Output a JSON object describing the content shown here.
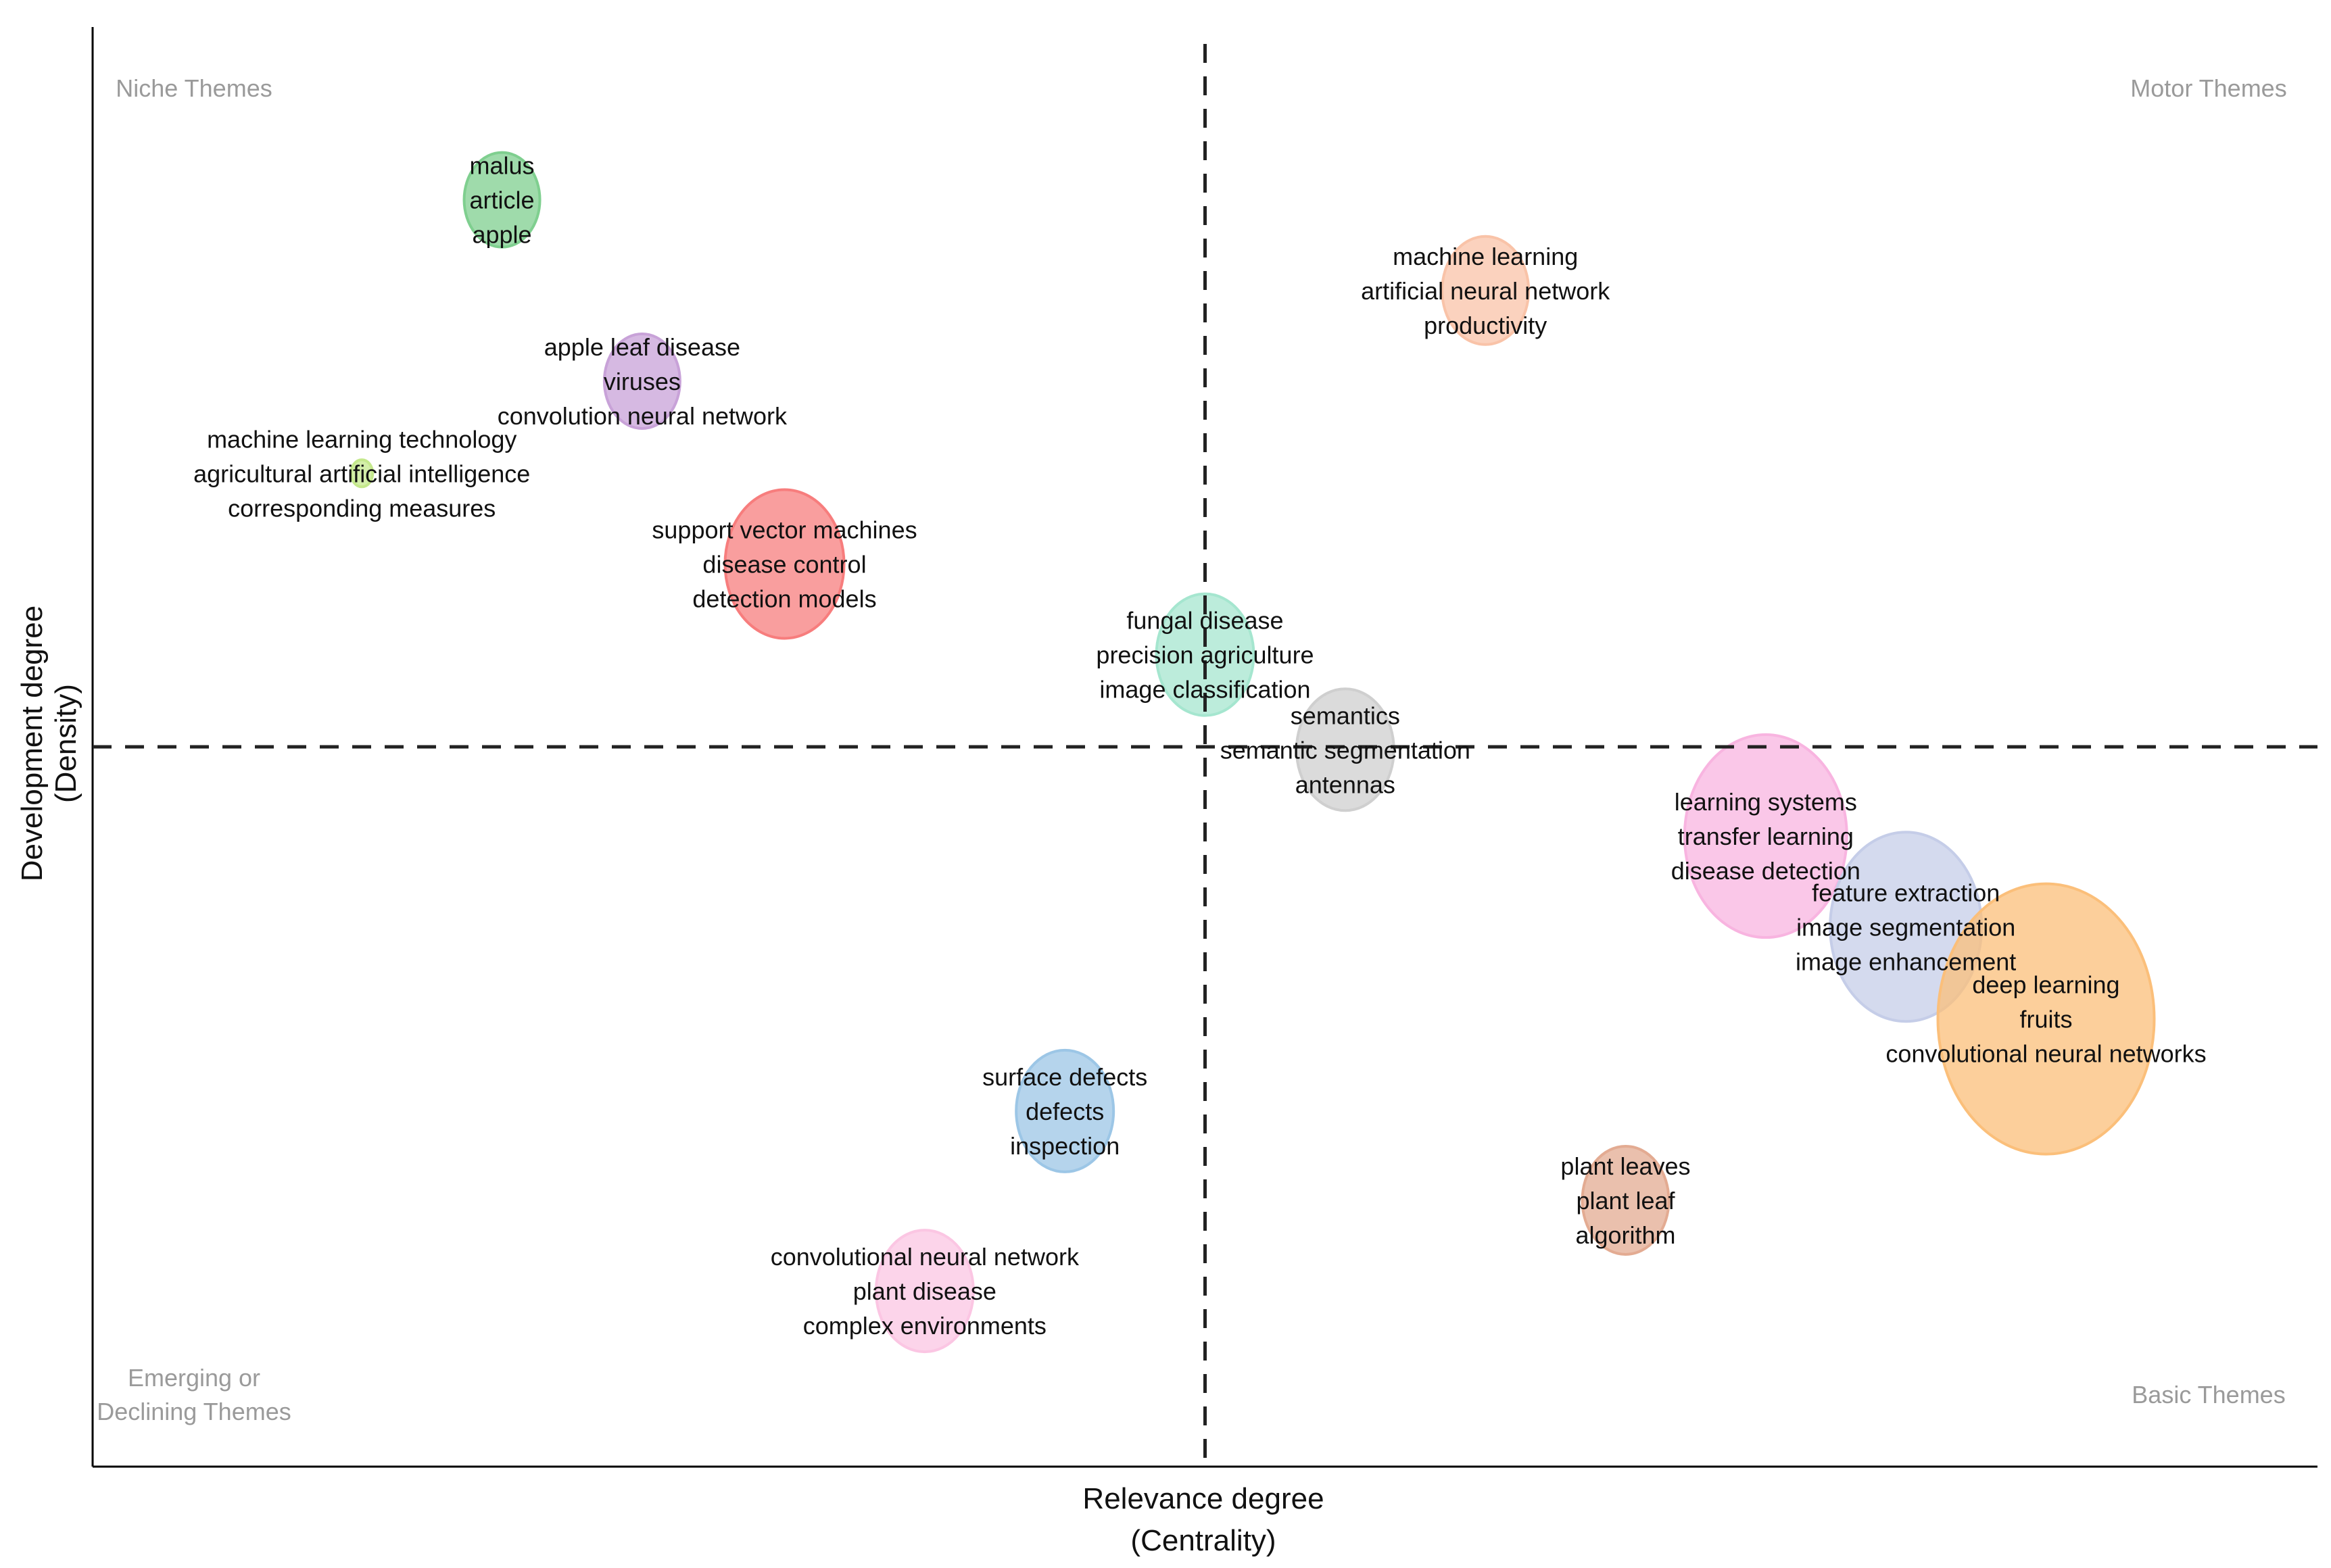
{
  "chart_data": {
    "type": "scatter",
    "title": "",
    "xlabel": [
      "Relevance degree",
      "(Centrality)"
    ],
    "ylabel": [
      "Development degree",
      "(Density)"
    ],
    "xlim": [
      0,
      1000
    ],
    "ylim": [
      0,
      1000
    ],
    "quadrant_lines": {
      "x": 500,
      "y": 500
    },
    "quadrant_labels": {
      "top_left": [
        "Niche Themes"
      ],
      "top_right": [
        "Motor Themes"
      ],
      "bottom_left": [
        "Emerging or",
        "Declining Themes"
      ],
      "bottom_right": [
        "Basic Themes"
      ]
    },
    "clusters": [
      {
        "id": "malus",
        "labels": [
          "malus",
          "article",
          "apple"
        ],
        "x": 184,
        "y": 880,
        "size": 3.5,
        "color": "#7fcf8f"
      },
      {
        "id": "apple-leaf-disease",
        "labels": [
          "apple leaf disease",
          "viruses",
          "convolution neural network"
        ],
        "x": 247,
        "y": 754,
        "size": 3.5,
        "color": "#c8a2d8"
      },
      {
        "id": "machine-learning-technology",
        "labels": [
          "machine learning technology",
          "agricultural artificial intelligence",
          "corresponding measures"
        ],
        "x": 121,
        "y": 690,
        "size": 1,
        "color": "#c4e88c"
      },
      {
        "id": "support-vector-machines",
        "labels": [
          "support vector machines",
          "disease control",
          "detection models"
        ],
        "x": 311,
        "y": 627,
        "size": 5.5,
        "color": "#f77d7d"
      },
      {
        "id": "machine-learning",
        "labels": [
          "machine learning",
          "artificial neural network",
          "productivity"
        ],
        "x": 626,
        "y": 817,
        "size": 4,
        "color": "#f9c3a8"
      },
      {
        "id": "fungal-disease",
        "labels": [
          "fungal disease",
          "precision agriculture",
          "image classification"
        ],
        "x": 500,
        "y": 564,
        "size": 4.5,
        "color": "#a5e6cf"
      },
      {
        "id": "semantics",
        "labels": [
          "semantics",
          "semantic segmentation",
          "antennas"
        ],
        "x": 563,
        "y": 498,
        "size": 4.5,
        "color": "#cfcfcf"
      },
      {
        "id": "learning-systems",
        "labels": [
          "learning systems",
          "transfer learning",
          "disease detection"
        ],
        "x": 752,
        "y": 438,
        "size": 7.5,
        "color": "#f8b4e0"
      },
      {
        "id": "feature-extraction",
        "labels": [
          "feature extraction",
          "image segmentation",
          "image enhancement"
        ],
        "x": 815,
        "y": 375,
        "size": 7,
        "color": "#c5cde8"
      },
      {
        "id": "deep-learning",
        "labels": [
          "deep learning",
          "fruits",
          "convolutional neural networks"
        ],
        "x": 878,
        "y": 311,
        "size": 10,
        "color": "#fbbf7a"
      },
      {
        "id": "surface-defects",
        "labels": [
          "surface defects",
          "defects",
          "inspection"
        ],
        "x": 437,
        "y": 247,
        "size": 4.5,
        "color": "#9cc6e6"
      },
      {
        "id": "plant-leaves",
        "labels": [
          "plant leaves",
          "plant leaf",
          "algorithm"
        ],
        "x": 689,
        "y": 185,
        "size": 4,
        "color": "#e3ab92"
      },
      {
        "id": "convolutional-neural-network",
        "labels": [
          "convolutional neural network",
          "plant disease",
          "complex environments"
        ],
        "x": 374,
        "y": 122,
        "size": 4.5,
        "color": "#fbc6e3"
      }
    ]
  }
}
